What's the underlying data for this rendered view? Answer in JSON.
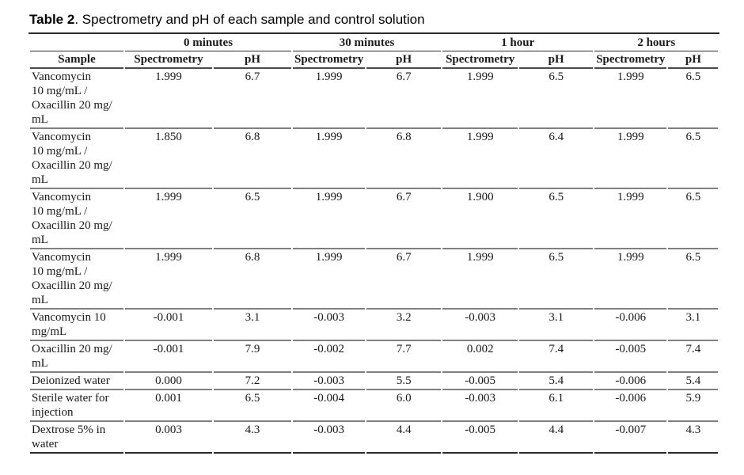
{
  "caption": {
    "label": "Table 2",
    "text": ". Spectrometry and pH of each sample and control solution"
  },
  "table": {
    "time_groups": [
      "0 minutes",
      "30 minutes",
      "1 hour",
      "2 hours"
    ],
    "sample_header": "Sample",
    "spectrometry_header": "Spectrometry",
    "ph_header": "pH",
    "rows": [
      {
        "sample": "Vancomycin\n10 mg/mL /\nOxacillin 20 mg/\nmL",
        "values": [
          "1.999",
          "6.7",
          "1.999",
          "6.7",
          "1.999",
          "6.5",
          "1.999",
          "6.5"
        ]
      },
      {
        "sample": "Vancomycin\n10 mg/mL /\nOxacillin 20 mg/\nmL",
        "values": [
          "1.850",
          "6.8",
          "1.999",
          "6.8",
          "1.999",
          "6.4",
          "1.999",
          "6.5"
        ]
      },
      {
        "sample": "Vancomycin\n10 mg/mL /\nOxacillin 20 mg/\nmL",
        "values": [
          "1.999",
          "6.5",
          "1.999",
          "6.7",
          "1.900",
          "6.5",
          "1.999",
          "6.5"
        ]
      },
      {
        "sample": "Vancomycin\n10 mg/mL /\nOxacillin 20 mg/\nmL",
        "values": [
          "1.999",
          "6.8",
          "1.999",
          "6.7",
          "1.999",
          "6.5",
          "1.999",
          "6.5"
        ]
      },
      {
        "sample": "Vancomycin 10\nmg/mL",
        "values": [
          "-0.001",
          "3.1",
          "-0.003",
          "3.2",
          "-0.003",
          "3.1",
          "-0.006",
          "3.1"
        ]
      },
      {
        "sample": "Oxacillin 20 mg/\nmL",
        "values": [
          "-0.001",
          "7.9",
          "-0.002",
          "7.7",
          "0.002",
          "7.4",
          "-0.005",
          "7.4"
        ]
      },
      {
        "sample": "Deionized water",
        "values": [
          "0.000",
          "7.2",
          "-0.003",
          "5.5",
          "-0.005",
          "5.4",
          "-0.006",
          "5.4"
        ]
      },
      {
        "sample": "Sterile water for\ninjection",
        "values": [
          "0.001",
          "6.5",
          "-0.004",
          "6.0",
          "-0.003",
          "6.1",
          "-0.006",
          "5.9"
        ]
      },
      {
        "sample": "Dextrose 5% in\nwater",
        "values": [
          "0.003",
          "4.3",
          "-0.003",
          "4.4",
          "-0.005",
          "4.4",
          "-0.007",
          "4.3"
        ]
      }
    ]
  },
  "colors": {
    "text": "#1a1a1a",
    "rule_dark": "#2b2b2b",
    "rule_medium": "#4a4a4a",
    "rule_light": "#7f7f7f",
    "background": "#ffffff"
  }
}
